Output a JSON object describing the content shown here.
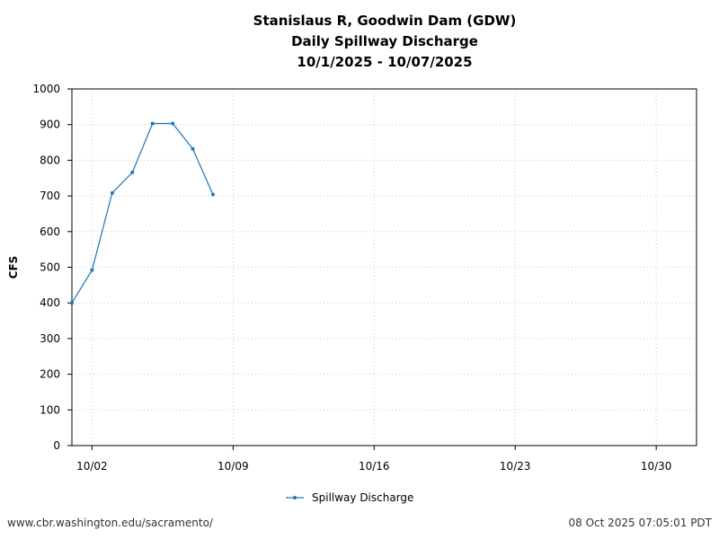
{
  "chart_data": {
    "type": "line",
    "title": [
      "Stanislaus R, Goodwin Dam (GDW)",
      "Daily Spillway Discharge",
      "10/1/2025 - 10/07/2025"
    ],
    "xlabel": "",
    "ylabel": "CFS",
    "x_axis": {
      "start": "2025-10-01",
      "end": "2025-11-01",
      "ticks": [
        {
          "date": "2025-10-02",
          "label": "10/02"
        },
        {
          "date": "2025-10-09",
          "label": "10/09"
        },
        {
          "date": "2025-10-16",
          "label": "10/16"
        },
        {
          "date": "2025-10-23",
          "label": "10/23"
        },
        {
          "date": "2025-10-30",
          "label": "10/30"
        }
      ]
    },
    "ylim": [
      0,
      1000
    ],
    "yticks": [
      0,
      100,
      200,
      300,
      400,
      500,
      600,
      700,
      800,
      900,
      1000
    ],
    "grid": true,
    "legend_position": "bottom-center",
    "series": [
      {
        "name": "Spillway Discharge",
        "color": "#1f77b4",
        "x": [
          "2025-10-01",
          "2025-10-02",
          "2025-10-03",
          "2025-10-04",
          "2025-10-05",
          "2025-10-06",
          "2025-10-07",
          "2025-10-08"
        ],
        "y": [
          400,
          492,
          708,
          766,
          903,
          903,
          832,
          704
        ]
      }
    ]
  },
  "footer": {
    "source": "www.cbr.washington.edu/sacramento/",
    "timestamp": "08 Oct 2025 07:05:01 PDT"
  }
}
